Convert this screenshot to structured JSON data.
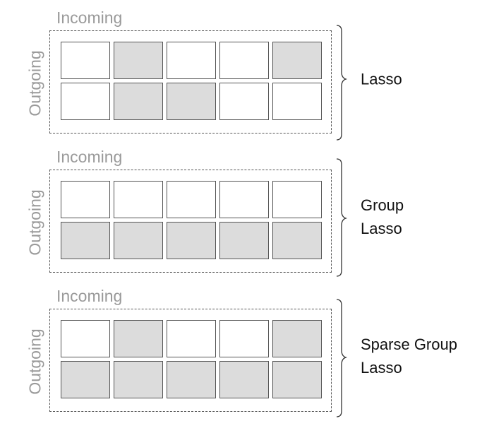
{
  "panels": [
    {
      "incoming_label": "Incoming",
      "outgoing_label": "Outgoing",
      "method_label": [
        "Lasso"
      ],
      "matrix": [
        [
          0,
          1,
          0,
          0,
          1
        ],
        [
          0,
          1,
          1,
          0,
          0
        ]
      ]
    },
    {
      "incoming_label": "Incoming",
      "outgoing_label": "Outgoing",
      "method_label": [
        "Group",
        "Lasso"
      ],
      "matrix": [
        [
          0,
          0,
          0,
          0,
          0
        ],
        [
          1,
          1,
          1,
          1,
          1
        ]
      ]
    },
    {
      "incoming_label": "Incoming",
      "outgoing_label": "Outgoing",
      "method_label": [
        "Sparse Group",
        "Lasso"
      ],
      "matrix": [
        [
          0,
          1,
          0,
          0,
          1
        ],
        [
          1,
          1,
          1,
          1,
          1
        ]
      ]
    }
  ],
  "colors": {
    "selected_cell": "#dcdcdc",
    "unselected_cell": "#ffffff",
    "label_gray": "#9a9a9a"
  }
}
